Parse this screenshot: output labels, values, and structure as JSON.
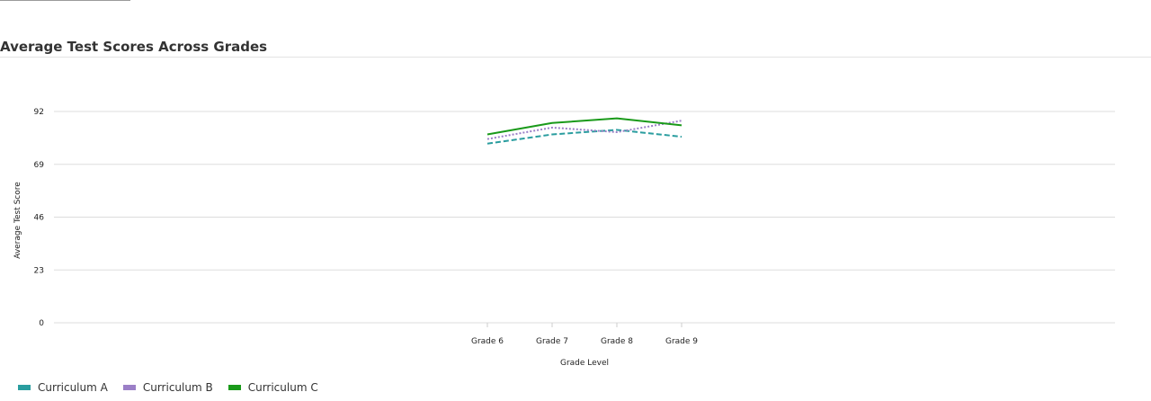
{
  "chart_data": {
    "type": "line",
    "title": "Average Test Scores Across Grades",
    "xlabel": "Grade Level",
    "ylabel": "Average Test Score",
    "categories": [
      "Grade 6",
      "Grade 7",
      "Grade 8",
      "Grade 9"
    ],
    "y_ticks": [
      0,
      23,
      46,
      69,
      92
    ],
    "ylim": [
      0,
      92
    ],
    "grid": true,
    "legend_position": "bottom-left",
    "series": [
      {
        "name": "Curriculum A",
        "color": "#2a9d9f",
        "style": "dashed",
        "values": [
          78,
          82,
          84,
          81
        ]
      },
      {
        "name": "Curriculum B",
        "color": "#9b7fc7",
        "style": "dotted",
        "values": [
          80,
          85,
          83,
          88
        ]
      },
      {
        "name": "Curriculum C",
        "color": "#1a9a1a",
        "style": "solid",
        "values": [
          82,
          87,
          89,
          86
        ]
      }
    ]
  }
}
